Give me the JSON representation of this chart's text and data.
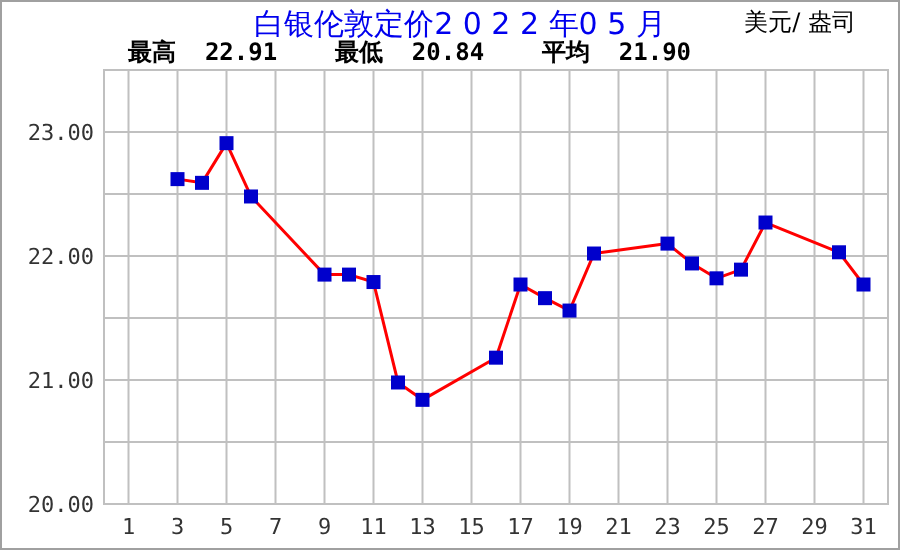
{
  "chart_data": {
    "type": "line",
    "title": "白银伦敦定价2 0 2 2 年0 5 月",
    "subtitle": "最高  22.91    最低  20.84    平均  21.90",
    "ylabel": "美元/ 盎司",
    "x": [
      3,
      4,
      5,
      6,
      9,
      10,
      11,
      12,
      13,
      16,
      17,
      18,
      19,
      20,
      23,
      24,
      25,
      26,
      27,
      30,
      31
    ],
    "series": [
      {
        "color": "#ff0000",
        "colors": [
          "#0000cc",
          "#0000cc",
          "#0000cc",
          "#0000cc",
          "#0000cc",
          "#0000cc",
          "#0000cc",
          "#0000cc",
          "#0000cc",
          "#0000cc",
          "#0000cc",
          "#0000cc",
          "#0000cc",
          "#0000cc",
          "#0000cc",
          "#0000cc",
          "#0000cc",
          "#0000cc",
          "#0000cc",
          "#0000cc",
          "#0000cc"
        ],
        "values": [
          22.62,
          22.59,
          22.91,
          22.48,
          21.85,
          21.85,
          21.79,
          20.98,
          20.84,
          21.18,
          21.77,
          21.66,
          21.56,
          22.02,
          22.1,
          21.94,
          21.82,
          21.89,
          22.27,
          22.03,
          21.77
        ]
      }
    ],
    "xlim": [
      0,
      32
    ],
    "xticks": [
      1,
      3,
      5,
      7,
      9,
      11,
      13,
      15,
      17,
      19,
      21,
      23,
      25,
      27,
      29,
      31
    ],
    "ylim": [
      20,
      23.5
    ],
    "yticks": [
      {
        "value": 20,
        "label": "20.00"
      },
      {
        "value": 20.5,
        "label": null
      },
      {
        "value": 21,
        "label": "21.00"
      },
      {
        "value": 21.5,
        "label": null
      },
      {
        "value": 22,
        "label": "22.00"
      },
      {
        "value": 22.5,
        "label": null
      },
      {
        "value": 23,
        "label": "23.00"
      }
    ],
    "grid": true,
    "marker": "square",
    "line_style": "solid"
  }
}
